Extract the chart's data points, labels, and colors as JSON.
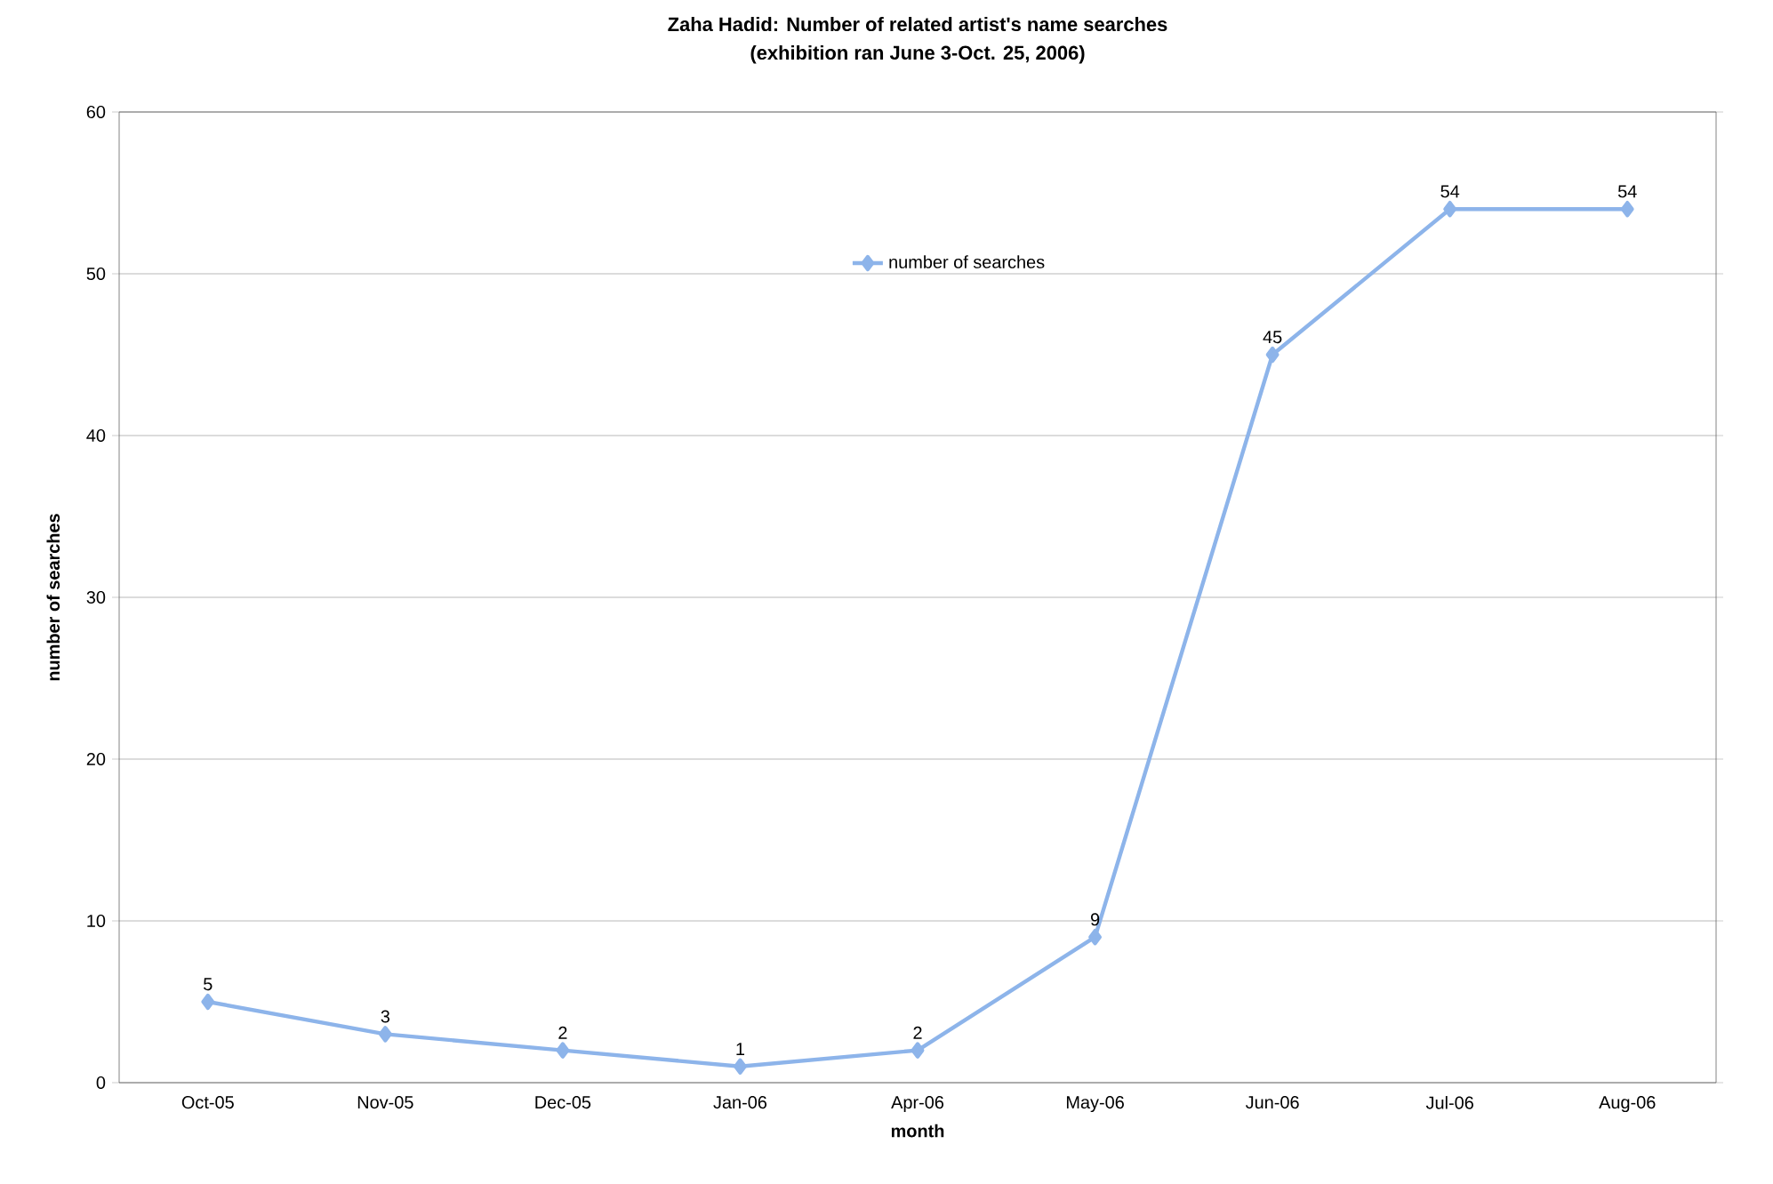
{
  "chart_data": {
    "type": "line",
    "title": "Zaha Hadid: Number of related artist's name searches",
    "subtitle": "(exhibition ran June 3-Oct. 25, 2006)",
    "xlabel": "month",
    "ylabel": "number of searches",
    "categories": [
      "Oct-05",
      "Nov-05",
      "Dec-05",
      "Jan-06",
      "Apr-06",
      "May-06",
      "Jun-06",
      "Jul-06",
      "Aug-06"
    ],
    "series": [
      {
        "name": "number of searches",
        "color": "#8db4ea",
        "values": [
          5,
          3,
          2,
          1,
          2,
          9,
          45,
          54,
          54
        ]
      }
    ],
    "ylim": [
      0,
      60
    ],
    "yticks": [
      0,
      10,
      20,
      30,
      40,
      50,
      60
    ],
    "grid": "y",
    "legend": "top",
    "marker": "diamond",
    "line_style": "solid",
    "data_labels": true
  }
}
